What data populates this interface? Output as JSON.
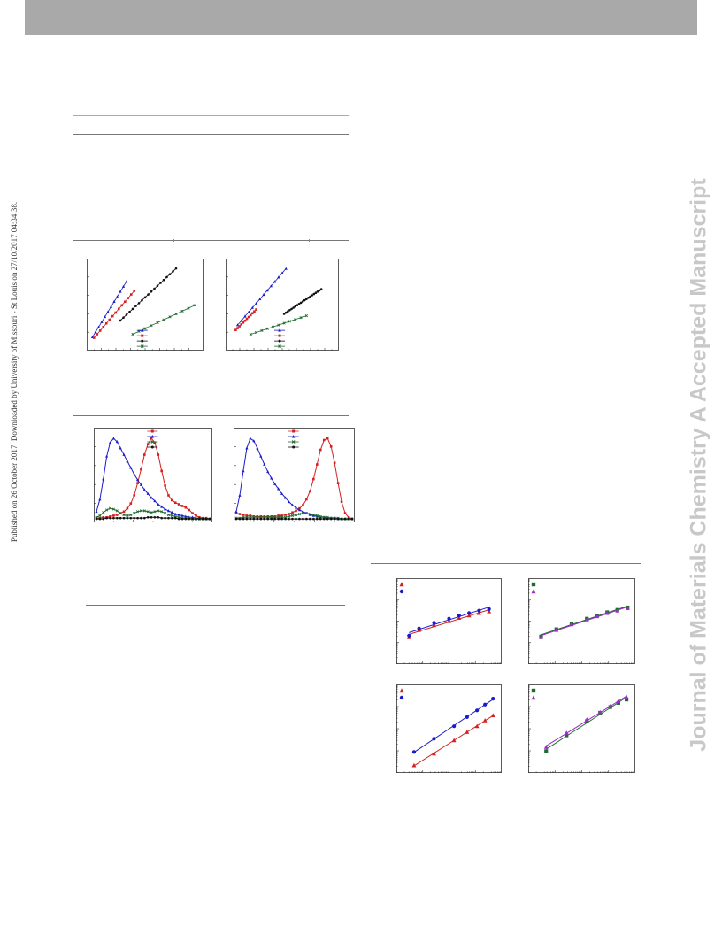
{
  "page": {
    "side_text": "Published on 26 October 2017. Downloaded by University of Missouri - St Louis on 27/10/2017 04:34:38.",
    "watermark": "Journal of Materials Chemistry A Accepted Manuscript"
  },
  "colors": {
    "header_bar": "#a9a9a9",
    "red": "#d42020",
    "blue": "#1a1acc",
    "black": "#111111",
    "green": "#1e6b2e",
    "purple": "#9b2fc9",
    "watermark": "#c8c8c8"
  },
  "chart_data": [
    {
      "id": "fig-a-left",
      "type": "scatter",
      "series": [
        {
          "color": "blue",
          "marker": "tri",
          "x": [
            1,
            2,
            3,
            4,
            5,
            6,
            7,
            8,
            9,
            10,
            11,
            12
          ],
          "y": [
            1.5,
            2.2,
            2.9,
            3.6,
            4.3,
            5.0,
            5.7,
            6.4,
            7.1,
            7.8,
            8.5,
            9.2
          ]
        },
        {
          "color": "red",
          "marker": "sq",
          "x": [
            1.5,
            2.5,
            3.5,
            4.5,
            5.5,
            6.5,
            7.5,
            8.5,
            9.5,
            10.5,
            11.5,
            12.5,
            13.5,
            14.5
          ],
          "y": [
            1.4,
            1.9,
            2.4,
            2.9,
            3.4,
            3.9,
            4.4,
            4.9,
            5.4,
            5.9,
            6.4,
            6.9,
            7.4,
            7.9
          ]
        },
        {
          "color": "black",
          "marker": "dot",
          "x": [
            10,
            11,
            12,
            13,
            14,
            15,
            16,
            17,
            18,
            19,
            20,
            21,
            22,
            23,
            24,
            25,
            26,
            27,
            28
          ],
          "y": [
            3.8,
            4.2,
            4.6,
            5.0,
            5.4,
            5.8,
            6.2,
            6.6,
            7.0,
            7.4,
            7.8,
            8.2,
            8.6,
            9.0,
            9.4,
            9.8,
            10.2,
            10.6,
            11.0
          ]
        },
        {
          "color": "green",
          "marker": "x",
          "x": [
            14,
            16,
            18,
            20,
            22,
            24,
            26,
            28,
            30,
            32,
            34
          ],
          "y": [
            1.9,
            2.3,
            2.7,
            3.1,
            3.5,
            3.9,
            4.3,
            4.7,
            5.1,
            5.5,
            5.9
          ]
        }
      ],
      "xlim": [
        0,
        36
      ],
      "ylim": [
        0,
        12
      ]
    },
    {
      "id": "fig-a-right",
      "type": "scatter",
      "series": [
        {
          "color": "blue",
          "marker": "tri",
          "x": [
            5,
            7,
            9,
            11,
            13,
            15,
            17,
            19,
            21,
            23,
            25,
            27,
            29,
            31
          ],
          "y": [
            3.7,
            4.4,
            5.1,
            5.8,
            6.5,
            7.2,
            7.9,
            8.6,
            9.3,
            10.0,
            10.7,
            11.4,
            12.1,
            12.8
          ]
        },
        {
          "color": "red",
          "marker": "sq",
          "x": [
            4,
            5,
            6,
            7,
            8,
            9,
            10,
            11,
            12,
            13,
            14,
            15
          ],
          "y": [
            2.9,
            3.2,
            3.5,
            3.8,
            4.1,
            4.4,
            4.7,
            5.0,
            5.3,
            5.6,
            5.9,
            6.2
          ]
        },
        {
          "color": "black",
          "marker": "dot",
          "x": [
            30,
            31,
            32,
            33,
            34,
            35,
            36,
            37,
            38,
            39,
            40,
            41,
            42,
            43,
            44,
            45,
            46,
            47,
            48,
            49,
            50
          ],
          "y": [
            5.5,
            5.7,
            5.9,
            6.1,
            6.3,
            6.5,
            6.7,
            6.9,
            7.1,
            7.3,
            7.5,
            7.7,
            7.9,
            8.1,
            8.3,
            8.5,
            8.7,
            8.9,
            9.1,
            9.3,
            9.5
          ]
        },
        {
          "color": "green",
          "marker": "x",
          "x": [
            12,
            15,
            18,
            21,
            24,
            27,
            30,
            33,
            36,
            39,
            42
          ],
          "y": [
            2.2,
            2.5,
            2.8,
            3.1,
            3.4,
            3.7,
            4.0,
            4.3,
            4.6,
            4.9,
            5.2
          ]
        }
      ],
      "xlim": [
        0,
        58
      ],
      "ylim": [
        0,
        14
      ]
    },
    {
      "id": "fig-b-left",
      "type": "line",
      "x": [
        0,
        4,
        8,
        12,
        16,
        20,
        24,
        28,
        32,
        36,
        40,
        44,
        48,
        52,
        56,
        60,
        64,
        68,
        72,
        76,
        80,
        84,
        88,
        92,
        96,
        100,
        104,
        108,
        112,
        116,
        120,
        124,
        128,
        132
      ],
      "series": [
        {
          "color": "red",
          "marker": "sq",
          "values": [
            0.02,
            0.02,
            0.03,
            0.03,
            0.04,
            0.05,
            0.06,
            0.08,
            0.1,
            0.14,
            0.2,
            0.3,
            0.45,
            0.62,
            0.8,
            0.93,
            1.0,
            0.95,
            0.8,
            0.6,
            0.42,
            0.3,
            0.24,
            0.21,
            0.19,
            0.17,
            0.15,
            0.12,
            0.08,
            0.05,
            0.03,
            0.02,
            0.02,
            0.01
          ]
        },
        {
          "color": "blue",
          "marker": "tri",
          "values": [
            0.1,
            0.25,
            0.5,
            0.78,
            0.95,
            1.0,
            0.96,
            0.88,
            0.8,
            0.72,
            0.64,
            0.56,
            0.49,
            0.43,
            0.37,
            0.32,
            0.27,
            0.23,
            0.19,
            0.16,
            0.13,
            0.11,
            0.09,
            0.07,
            0.06,
            0.05,
            0.04,
            0.03,
            0.03,
            0.02,
            0.02,
            0.01,
            0.01,
            0.01
          ]
        },
        {
          "color": "green",
          "marker": "x",
          "values": [
            0.03,
            0.05,
            0.09,
            0.12,
            0.14,
            0.13,
            0.11,
            0.08,
            0.06,
            0.05,
            0.06,
            0.08,
            0.1,
            0.11,
            0.11,
            0.1,
            0.09,
            0.1,
            0.11,
            0.1,
            0.08,
            0.06,
            0.05,
            0.04,
            0.03,
            0.02,
            0.02,
            0.02,
            0.01,
            0.01,
            0.01,
            0.01,
            0.01,
            0.01
          ]
        },
        {
          "color": "black",
          "marker": "dot",
          "values": [
            0.01,
            0.01,
            0.01,
            0.02,
            0.02,
            0.02,
            0.02,
            0.02,
            0.02,
            0.02,
            0.02,
            0.02,
            0.02,
            0.02,
            0.02,
            0.03,
            0.03,
            0.03,
            0.03,
            0.02,
            0.02,
            0.02,
            0.02,
            0.02,
            0.01,
            0.01,
            0.01,
            0.01,
            0.01,
            0.01,
            0.01,
            0.01,
            0.01,
            0.01
          ]
        }
      ],
      "xlim": [
        0,
        132
      ],
      "ylim": [
        0,
        1.1
      ]
    },
    {
      "id": "fig-b-right",
      "type": "line",
      "x": [
        0,
        4,
        8,
        12,
        16,
        20,
        24,
        28,
        32,
        36,
        40,
        44,
        48,
        52,
        56,
        60,
        64,
        68,
        72,
        76,
        80,
        84,
        88,
        92,
        96,
        100,
        104,
        108,
        112,
        116,
        120,
        124,
        128,
        132
      ],
      "series": [
        {
          "color": "red",
          "marker": "sq",
          "values": [
            0.08,
            0.07,
            0.06,
            0.05,
            0.05,
            0.04,
            0.04,
            0.04,
            0.04,
            0.04,
            0.04,
            0.04,
            0.05,
            0.05,
            0.06,
            0.07,
            0.09,
            0.11,
            0.14,
            0.18,
            0.25,
            0.35,
            0.5,
            0.68,
            0.86,
            0.98,
            1.0,
            0.9,
            0.7,
            0.45,
            0.22,
            0.08,
            0.03,
            0.01
          ]
        },
        {
          "color": "blue",
          "marker": "tri",
          "values": [
            0.1,
            0.3,
            0.6,
            0.88,
            1.0,
            0.97,
            0.88,
            0.78,
            0.68,
            0.59,
            0.51,
            0.44,
            0.38,
            0.32,
            0.27,
            0.22,
            0.18,
            0.15,
            0.12,
            0.1,
            0.08,
            0.06,
            0.05,
            0.04,
            0.03,
            0.03,
            0.02,
            0.02,
            0.02,
            0.01,
            0.01,
            0.01,
            0.01,
            0.01
          ]
        },
        {
          "color": "green",
          "marker": "x",
          "values": [
            0.02,
            0.02,
            0.03,
            0.03,
            0.03,
            0.03,
            0.03,
            0.03,
            0.03,
            0.03,
            0.03,
            0.03,
            0.03,
            0.03,
            0.03,
            0.04,
            0.05,
            0.06,
            0.07,
            0.08,
            0.08,
            0.07,
            0.06,
            0.05,
            0.04,
            0.03,
            0.03,
            0.02,
            0.02,
            0.02,
            0.01,
            0.01,
            0.01,
            0.01
          ]
        },
        {
          "color": "black",
          "marker": "dot",
          "values": [
            0.01,
            0.01,
            0.01,
            0.01,
            0.01,
            0.01,
            0.01,
            0.01,
            0.01,
            0.01,
            0.01,
            0.01,
            0.01,
            0.01,
            0.01,
            0.01,
            0.01,
            0.01,
            0.01,
            0.01,
            0.01,
            0.01,
            0.01,
            0.01,
            0.01,
            0.01,
            0.01,
            0.01,
            0.01,
            0.01,
            0.01,
            0.01,
            0.01,
            0.01
          ]
        }
      ],
      "xlim": [
        0,
        132
      ],
      "ylim": [
        0,
        1.1
      ]
    },
    {
      "id": "fig-c-top-left",
      "type": "scatter",
      "scale": "log-log",
      "series": [
        {
          "color": "red",
          "marker": "tri",
          "x": [
            1.0,
            2.0,
            3.5,
            5.0,
            6.0,
            7.0,
            8.0,
            9.0
          ],
          "y": [
            3.0,
            3.9,
            4.5,
            5.0,
            5.4,
            5.7,
            6.0,
            6.2
          ]
        },
        {
          "color": "blue",
          "marker": "dot",
          "x": [
            1.0,
            2.0,
            3.5,
            5.0,
            6.0,
            7.0,
            8.0,
            9.0
          ],
          "y": [
            3.2,
            4.1,
            4.8,
            5.3,
            5.7,
            6.0,
            6.3,
            6.5
          ]
        }
      ],
      "xlim": [
        0,
        10
      ],
      "ylim": [
        0,
        10
      ]
    },
    {
      "id": "fig-c-top-right",
      "type": "scatter",
      "scale": "log-log",
      "series": [
        {
          "color": "green",
          "marker": "sq",
          "x": [
            1.0,
            2.5,
            4.0,
            5.5,
            6.5,
            7.5,
            8.5,
            9.5
          ],
          "y": [
            3.1,
            4.0,
            4.7,
            5.3,
            5.7,
            6.1,
            6.4,
            6.7
          ]
        },
        {
          "color": "purple",
          "marker": "tri",
          "x": [
            1.0,
            2.5,
            4.0,
            5.5,
            6.5,
            7.5,
            8.5,
            9.5
          ],
          "y": [
            3.0,
            3.9,
            4.6,
            5.2,
            5.6,
            6.0,
            6.3,
            6.6
          ]
        }
      ],
      "xlim": [
        0,
        10
      ],
      "ylim": [
        0,
        10
      ]
    },
    {
      "id": "fig-c-bottom-left",
      "type": "scatter",
      "scale": "log-log",
      "series": [
        {
          "color": "red",
          "marker": "tri",
          "x": [
            1.5,
            3.5,
            5.5,
            6.8,
            7.8,
            8.6,
            9.4
          ],
          "y": [
            0.6,
            2.0,
            3.6,
            4.6,
            5.3,
            6.0,
            6.6
          ]
        },
        {
          "color": "blue",
          "marker": "dot",
          "x": [
            1.5,
            3.5,
            5.5,
            6.8,
            7.8,
            8.6,
            9.4
          ],
          "y": [
            2.2,
            3.8,
            5.3,
            6.4,
            7.2,
            7.9,
            8.6
          ]
        }
      ],
      "xlim": [
        0,
        10
      ],
      "ylim": [
        0,
        10
      ]
    },
    {
      "id": "fig-c-bottom-right",
      "type": "scatter",
      "scale": "log-log",
      "series": [
        {
          "color": "green",
          "marker": "sq",
          "x": [
            1.5,
            3.5,
            5.5,
            6.8,
            7.8,
            8.6,
            9.4
          ],
          "y": [
            2.3,
            4.2,
            5.9,
            6.9,
            7.6,
            8.1,
            8.5
          ]
        },
        {
          "color": "purple",
          "marker": "tri",
          "x": [
            1.5,
            3.5,
            5.5,
            6.8,
            7.8,
            8.6,
            9.4
          ],
          "y": [
            2.8,
            4.5,
            6.1,
            7.0,
            7.7,
            8.3,
            8.8
          ]
        }
      ],
      "xlim": [
        0,
        10
      ],
      "ylim": [
        0,
        10
      ]
    }
  ]
}
